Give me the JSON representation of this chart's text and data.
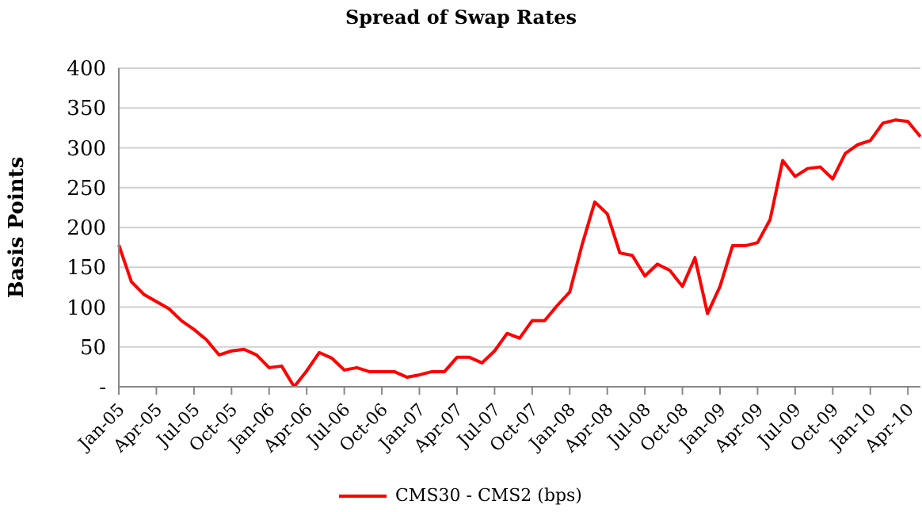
{
  "chart_data": {
    "type": "line",
    "title": "Spread of Swap Rates",
    "ylabel": "Basis Points",
    "categories": [
      "Jan-05",
      null,
      null,
      "Apr-05",
      null,
      null,
      "Jul-05",
      null,
      null,
      "Oct-05",
      null,
      null,
      "Jan-06",
      null,
      null,
      "Apr-06",
      null,
      null,
      "Jul-06",
      null,
      null,
      "Oct-06",
      null,
      null,
      "Jan-07",
      null,
      null,
      "Apr-07",
      null,
      null,
      "Jul-07",
      null,
      null,
      "Oct-07",
      null,
      null,
      "Jan-08",
      null,
      null,
      "Apr-08",
      null,
      null,
      "Jul-08",
      null,
      null,
      "Oct-08",
      null,
      null,
      "Jan-09",
      null,
      null,
      "Apr-09",
      null,
      null,
      "Jul-09",
      null,
      null,
      "Oct-09",
      null,
      null,
      "Jan-10",
      null,
      null,
      "Apr-10",
      null
    ],
    "series": [
      {
        "name": "CMS30 - CMS2 (bps)",
        "color": "#ff0000",
        "values": [
          178,
          132,
          116,
          107,
          98,
          83,
          72,
          59,
          40,
          45,
          47,
          40,
          24,
          26,
          0,
          20,
          43,
          36,
          21,
          24,
          19,
          19,
          19,
          12,
          15,
          19,
          19,
          37,
          37,
          30,
          45,
          67,
          61,
          83,
          83,
          102,
          119,
          179,
          232,
          217,
          168,
          165,
          139,
          154,
          146,
          126,
          162,
          92,
          126,
          177,
          177,
          181,
          210,
          284,
          264,
          274,
          276,
          261,
          293,
          304,
          309,
          331,
          335,
          333,
          314
        ]
      }
    ],
    "ylim": [
      0,
      400
    ],
    "yticks": [
      {
        "value": 0,
        "label": "-"
      },
      50,
      100,
      150,
      200,
      250,
      300,
      350,
      400
    ],
    "grid": "y",
    "legend": "bottom",
    "marker": "none",
    "line_style": "solid"
  }
}
